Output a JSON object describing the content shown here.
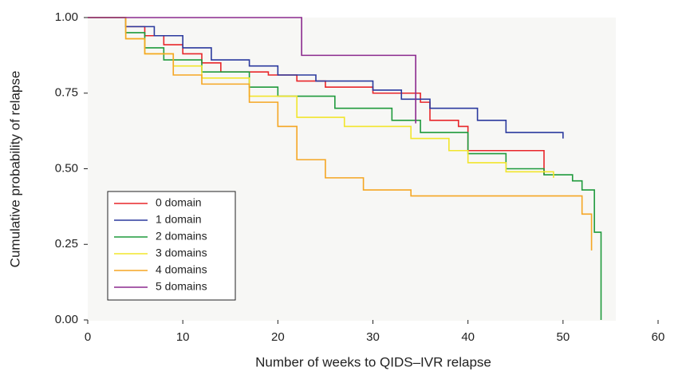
{
  "chart_data": {
    "type": "line",
    "step": true,
    "x_label": "Number of weeks to QIDS–IVR relapse",
    "y_label": "Cumulative probability of relapse",
    "xlim": [
      0,
      60
    ],
    "xticks": [
      0,
      10,
      20,
      30,
      40,
      50,
      60
    ],
    "ylim": [
      0,
      1
    ],
    "yticks": [
      {
        "value": 0,
        "label": "0.00"
      },
      {
        "value": 0.25,
        "label": "0.25"
      },
      {
        "value": 0.5,
        "label": "0.50"
      },
      {
        "value": 0.75,
        "label": "0.75"
      },
      {
        "value": 1,
        "label": "1.00"
      }
    ],
    "legend": "lower left",
    "series": [
      {
        "name": "0 domain",
        "color": "#e8262a",
        "x": [
          0,
          4,
          4,
          6,
          6,
          8,
          8,
          10,
          10,
          12,
          12,
          14,
          14,
          19,
          19,
          22,
          22,
          25,
          25,
          30,
          30,
          35,
          35,
          36,
          36,
          39,
          39,
          40,
          40,
          48,
          48
        ],
        "values": [
          1,
          1,
          0.97,
          0.97,
          0.94,
          0.94,
          0.91,
          0.91,
          0.88,
          0.88,
          0.85,
          0.85,
          0.82,
          0.82,
          0.81,
          0.81,
          0.79,
          0.79,
          0.77,
          0.77,
          0.75,
          0.75,
          0.72,
          0.72,
          0.66,
          0.66,
          0.64,
          0.64,
          0.56,
          0.56,
          0.48
        ]
      },
      {
        "name": "1 domain",
        "color": "#2b3a9e",
        "x": [
          0,
          4,
          4,
          7,
          7,
          10,
          10,
          13,
          13,
          17,
          17,
          20,
          20,
          24,
          24,
          30,
          30,
          33,
          33,
          36,
          36,
          41,
          41,
          44,
          44,
          50,
          50
        ],
        "values": [
          1,
          1,
          0.97,
          0.97,
          0.94,
          0.94,
          0.9,
          0.9,
          0.86,
          0.86,
          0.84,
          0.84,
          0.81,
          0.81,
          0.79,
          0.79,
          0.76,
          0.76,
          0.73,
          0.73,
          0.7,
          0.7,
          0.66,
          0.66,
          0.62,
          0.62,
          0.6
        ]
      },
      {
        "name": "2 domains",
        "color": "#1f9a3c",
        "x": [
          0,
          4,
          4,
          6,
          6,
          8,
          8,
          12,
          12,
          17,
          17,
          20,
          20,
          26,
          26,
          32,
          32,
          35,
          35,
          40,
          40,
          44,
          44,
          48,
          48,
          51,
          51,
          52,
          52,
          53.3,
          53.3,
          54,
          54
        ],
        "values": [
          1,
          1,
          0.95,
          0.95,
          0.9,
          0.9,
          0.86,
          0.86,
          0.82,
          0.82,
          0.77,
          0.77,
          0.74,
          0.74,
          0.7,
          0.7,
          0.66,
          0.66,
          0.62,
          0.62,
          0.55,
          0.55,
          0.5,
          0.5,
          0.48,
          0.48,
          0.46,
          0.46,
          0.43,
          0.43,
          0.29,
          0.29,
          0
        ]
      },
      {
        "name": "3 domains",
        "color": "#f2e52c",
        "x": [
          0,
          4,
          4,
          6,
          6,
          9,
          9,
          12,
          12,
          17,
          17,
          22,
          22,
          27,
          27,
          34,
          34,
          38,
          38,
          40,
          40,
          44,
          44,
          49,
          49
        ],
        "values": [
          1,
          1,
          0.93,
          0.93,
          0.88,
          0.88,
          0.84,
          0.84,
          0.8,
          0.8,
          0.74,
          0.74,
          0.67,
          0.67,
          0.64,
          0.64,
          0.6,
          0.6,
          0.56,
          0.56,
          0.52,
          0.52,
          0.49,
          0.49,
          0.47
        ]
      },
      {
        "name": "4 domains",
        "color": "#f5a623",
        "x": [
          0,
          4,
          4,
          6,
          6,
          9,
          9,
          12,
          12,
          17,
          17,
          20,
          20,
          22,
          22,
          25,
          25,
          29,
          29,
          34,
          34,
          52,
          52,
          53,
          53
        ],
        "values": [
          1,
          1,
          0.93,
          0.93,
          0.88,
          0.88,
          0.81,
          0.81,
          0.78,
          0.78,
          0.72,
          0.72,
          0.64,
          0.64,
          0.53,
          0.53,
          0.47,
          0.47,
          0.43,
          0.43,
          0.41,
          0.41,
          0.35,
          0.35,
          0.23
        ]
      },
      {
        "name": "5 domains",
        "color": "#8b2a8e",
        "x": [
          0,
          22.5,
          22.5,
          34.5,
          34.5
        ],
        "values": [
          1,
          1,
          0.875,
          0.875,
          0.65
        ]
      }
    ]
  }
}
